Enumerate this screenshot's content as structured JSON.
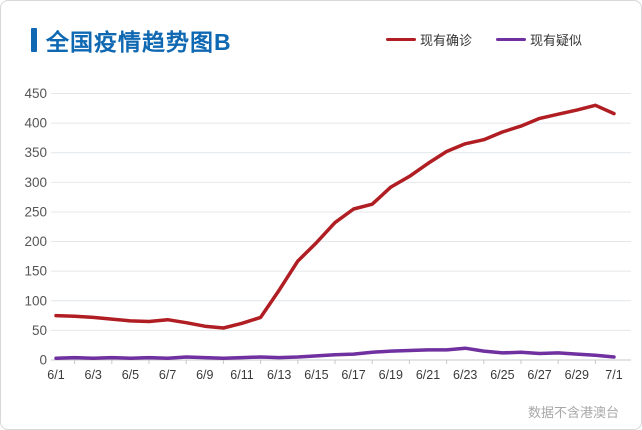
{
  "header": {
    "title": "全国疫情趋势图B"
  },
  "footer": {
    "note": "数据不含港澳台"
  },
  "colors": {
    "title_blue": "#0f68b2",
    "confirmed_red": "#b01e23",
    "suspected_purple": "#7030a0",
    "grid": "#e4e7ea",
    "axis": "#c4c8cc",
    "y_label": "#555555",
    "x_label": "#3a3a3a"
  },
  "chart_data": {
    "type": "line",
    "title": "全国疫情趋势图B",
    "x": [
      "6/1",
      "6/2",
      "6/3",
      "6/4",
      "6/5",
      "6/6",
      "6/7",
      "6/8",
      "6/9",
      "6/10",
      "6/11",
      "6/12",
      "6/13",
      "6/14",
      "6/15",
      "6/16",
      "6/17",
      "6/18",
      "6/19",
      "6/20",
      "6/21",
      "6/22",
      "6/23",
      "6/24",
      "6/25",
      "6/26",
      "6/27",
      "6/28",
      "6/29",
      "6/30",
      "7/1"
    ],
    "x_labels_shown": [
      "6/1",
      "6/3",
      "6/5",
      "6/7",
      "6/9",
      "6/11",
      "6/13",
      "6/15",
      "6/17",
      "6/19",
      "6/21",
      "6/23",
      "6/25",
      "6/27",
      "6/29",
      "7/1"
    ],
    "x_label_every": 2,
    "series": [
      {
        "name": "现有确诊",
        "color": "#b01e23",
        "values": [
          75,
          74,
          72,
          69,
          66,
          65,
          68,
          63,
          57,
          54,
          62,
          72,
          118,
          167,
          198,
          232,
          255,
          263,
          292,
          310,
          332,
          352,
          365,
          372,
          385,
          395,
          408,
          415,
          422,
          430,
          416
        ]
      },
      {
        "name": "现有疑似",
        "color": "#7030a0",
        "values": [
          3,
          4,
          3,
          4,
          3,
          4,
          3,
          5,
          4,
          3,
          4,
          5,
          4,
          5,
          7,
          9,
          10,
          13,
          15,
          16,
          17,
          17,
          20,
          15,
          12,
          13,
          11,
          12,
          10,
          8,
          5
        ]
      }
    ],
    "ylim": [
      0,
      450
    ],
    "ytick_step": 50,
    "yticks": [
      0,
      50,
      100,
      150,
      200,
      250,
      300,
      350,
      400,
      450
    ],
    "grid": true,
    "legend_position": "top-right"
  }
}
